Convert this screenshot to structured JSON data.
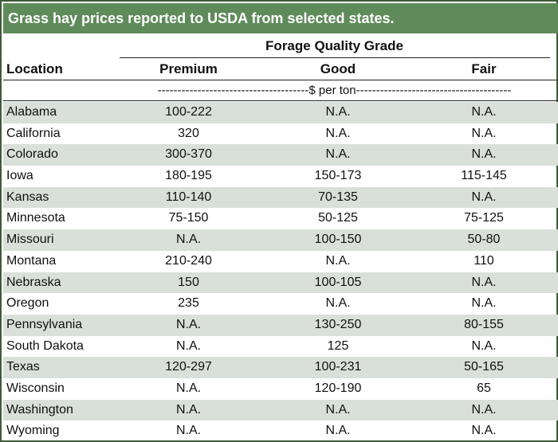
{
  "title": "Grass hay prices reported to USDA from selected states.",
  "header": {
    "group_label": "Forage Quality Grade",
    "location_label": "Location",
    "columns": [
      "Premium",
      "Good",
      "Fair"
    ],
    "unit_label": "--------------------------------------$ per ton---------------------------------------"
  },
  "rows": [
    {
      "location": "Alabama",
      "premium": "100-222",
      "good": "N.A.",
      "fair": "N.A."
    },
    {
      "location": "California",
      "premium": "320",
      "good": "N.A.",
      "fair": "N.A."
    },
    {
      "location": "Colorado",
      "premium": "300-370",
      "good": "N.A.",
      "fair": "N.A."
    },
    {
      "location": "Iowa",
      "premium": "180-195",
      "good": "150-173",
      "fair": "115-145"
    },
    {
      "location": "Kansas",
      "premium": "110-140",
      "good": "70-135",
      "fair": "N.A."
    },
    {
      "location": "Minnesota",
      "premium": "75-150",
      "good": "50-125",
      "fair": "75-125"
    },
    {
      "location": "Missouri",
      "premium": "N.A.",
      "good": "100-150",
      "fair": "50-80"
    },
    {
      "location": "Montana",
      "premium": "210-240",
      "good": "N.A.",
      "fair": "110"
    },
    {
      "location": "Nebraska",
      "premium": "150",
      "good": "100-105",
      "fair": "N.A."
    },
    {
      "location": "Oregon",
      "premium": "235",
      "good": "N.A.",
      "fair": "N.A."
    },
    {
      "location": "Pennsylvania",
      "premium": "N.A.",
      "good": "130-250",
      "fair": "80-155"
    },
    {
      "location": "South Dakota",
      "premium": "N.A.",
      "good": "125",
      "fair": "N.A."
    },
    {
      "location": "Texas",
      "premium": "120-297",
      "good": "100-231",
      "fair": "50-165"
    },
    {
      "location": "Wisconsin",
      "premium": "N.A.",
      "good": "120-190",
      "fair": "65"
    },
    {
      "location": "Washington",
      "premium": "N.A.",
      "good": "N.A.",
      "fair": "N.A."
    },
    {
      "location": "Wyoming",
      "premium": "N.A.",
      "good": "N.A.",
      "fair": "N.A."
    }
  ],
  "colors": {
    "title_bg": "#5f8b5a",
    "shade": "#d8e0d9",
    "border": "#3f5a3a"
  }
}
